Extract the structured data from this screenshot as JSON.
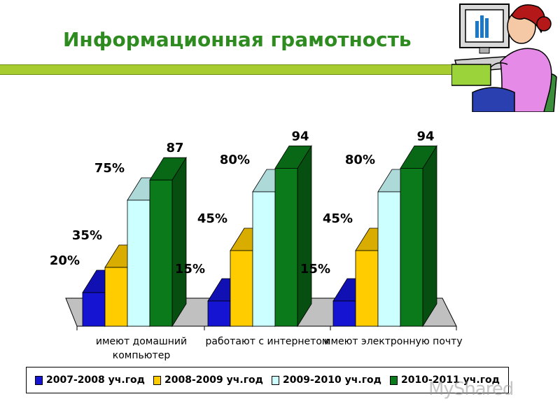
{
  "title": "Информационная грамотность",
  "watermark": "MyShared",
  "colors": {
    "title": "#2e8b1f",
    "bar": "#a6cc2f",
    "series": [
      "#1414d2",
      "#ffcc00",
      "#ccffff",
      "#0a7a1a"
    ]
  },
  "chart_data": {
    "type": "bar",
    "categories": [
      "имеют домашний компьютер",
      "работают с интернетом",
      "имеют электронную почту"
    ],
    "category_lines": [
      [
        "имеют домашний",
        "компьютер"
      ],
      [
        "работают с интернетом"
      ],
      [
        "имеют электронную почту"
      ]
    ],
    "series": [
      {
        "name": "2007-2008 уч.год",
        "values": [
          20,
          15,
          15
        ],
        "labels": [
          "20%",
          "15%",
          "15%"
        ]
      },
      {
        "name": "2008-2009 уч.год",
        "values": [
          35,
          45,
          45
        ],
        "labels": [
          "35%",
          "45%",
          "45%"
        ]
      },
      {
        "name": "2009-2010 уч.год",
        "values": [
          75,
          80,
          80
        ],
        "labels": [
          "75%",
          "80%",
          "80%"
        ]
      },
      {
        "name": "2010-2011 уч.год",
        "values": [
          87,
          94,
          94
        ],
        "labels": [
          "87",
          "94",
          "94"
        ]
      }
    ],
    "ylim": [
      0,
      100
    ],
    "grid": false,
    "legend_position": "bottom"
  }
}
